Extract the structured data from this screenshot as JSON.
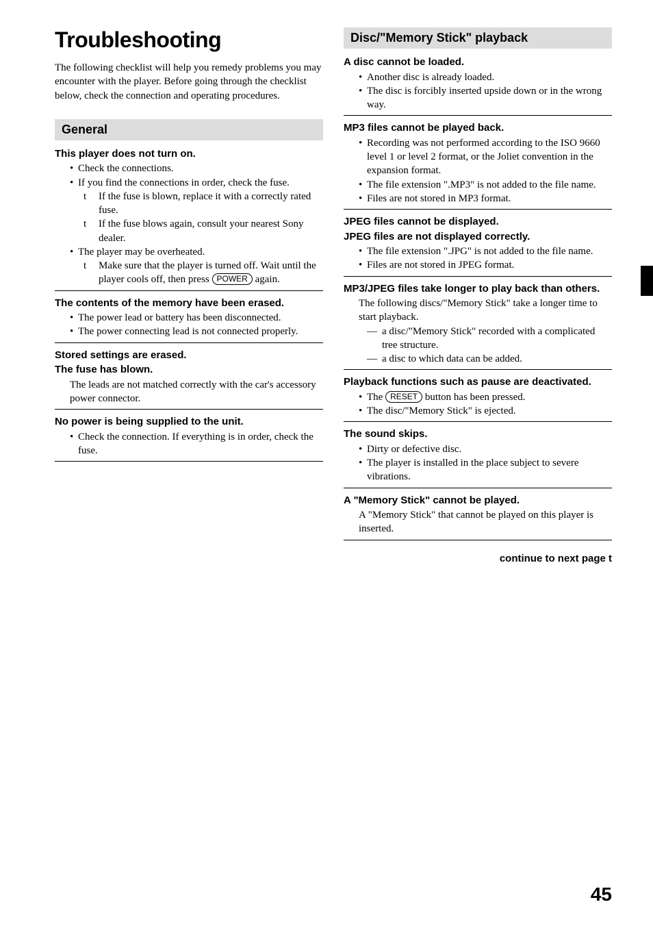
{
  "pageNumber": "45",
  "title": "Troubleshooting",
  "intro": "The following checklist will help you remedy problems you may encounter with the player. Before going through the checklist below, check the connection and operating procedures.",
  "continueText": "continue to next page",
  "arrowGlyph": "t",
  "buttons": {
    "power": "POWER",
    "reset": "RESET"
  },
  "sections": {
    "general": {
      "header": "General",
      "items": [
        {
          "title": "This player does not turn on.",
          "lines": [
            {
              "type": "bullet",
              "text": "Check the connections."
            },
            {
              "type": "bullet",
              "text": "If you find the connections in order, check the fuse."
            },
            {
              "type": "arrow",
              "text": "If the fuse is blown, replace it with a correctly rated fuse."
            },
            {
              "type": "arrow",
              "text": "If the fuse blows again, consult your nearest Sony dealer."
            },
            {
              "type": "bullet",
              "text": "The player may be overheated."
            },
            {
              "type": "arrow",
              "pre": "Make sure that the player is turned off. Wait until the player cools off, then press ",
              "btn": "power",
              "post": " again."
            }
          ]
        },
        {
          "title": "The contents of the memory have been erased.",
          "lines": [
            {
              "type": "bullet",
              "text": "The power lead or battery has been disconnected."
            },
            {
              "type": "bullet",
              "text": "The power connecting lead is not connected properly."
            }
          ]
        },
        {
          "titleLines": [
            "Stored settings are erased.",
            "The fuse has blown."
          ],
          "lines": [
            {
              "type": "body",
              "text": "The leads are not matched correctly with the car's accessory power connector."
            }
          ]
        },
        {
          "title": "No power is being supplied to the unit.",
          "lines": [
            {
              "type": "bullet",
              "text": "Check the connection. If everything is in order, check the fuse."
            }
          ]
        }
      ]
    },
    "disc": {
      "header": "Disc/\"Memory Stick\" playback",
      "items": [
        {
          "title": "A disc cannot be loaded.",
          "lines": [
            {
              "type": "bullet",
              "text": "Another disc is already loaded."
            },
            {
              "type": "bullet",
              "text": "The disc is forcibly inserted upside down or in the wrong way."
            }
          ]
        },
        {
          "title": "MP3 files cannot be played back.",
          "lines": [
            {
              "type": "bullet",
              "text": "Recording was not performed according to the ISO 9660 level 1 or level 2 format, or the Joliet convention in the expansion format."
            },
            {
              "type": "bullet",
              "text": "The file extension \".MP3\" is not added to the file name."
            },
            {
              "type": "bullet",
              "text": "Files are not stored in MP3 format."
            }
          ]
        },
        {
          "titleLines": [
            "JPEG files cannot be displayed.",
            "JPEG files are not displayed correctly."
          ],
          "lines": [
            {
              "type": "bullet",
              "text": "The file extension \".JPG\" is not added to the file name."
            },
            {
              "type": "bullet",
              "text": "Files are not stored in JPEG format."
            }
          ]
        },
        {
          "title": "MP3/JPEG files take longer to play back than others.",
          "lines": [
            {
              "type": "body",
              "text": "The following discs/\"Memory Stick\" take a longer time to start playback."
            },
            {
              "type": "dash",
              "text": "a disc/\"Memory Stick\" recorded with a complicated tree structure."
            },
            {
              "type": "dash",
              "text": "a disc to which data can be added."
            }
          ]
        },
        {
          "title": "Playback functions such as pause are deactivated.",
          "lines": [
            {
              "type": "bullet",
              "pre": "The ",
              "btn": "reset",
              "post": " button has been pressed."
            },
            {
              "type": "bullet",
              "text": "The disc/\"Memory Stick\" is ejected."
            }
          ]
        },
        {
          "title": "The sound skips.",
          "lines": [
            {
              "type": "bullet",
              "text": "Dirty or defective disc."
            },
            {
              "type": "bullet",
              "text": "The player is installed in the place subject to severe vibrations."
            }
          ]
        },
        {
          "title": "A \"Memory Stick\" cannot be played.",
          "lines": [
            {
              "type": "body",
              "text": "A \"Memory Stick\" that cannot be played on this player is inserted."
            }
          ]
        }
      ]
    }
  }
}
